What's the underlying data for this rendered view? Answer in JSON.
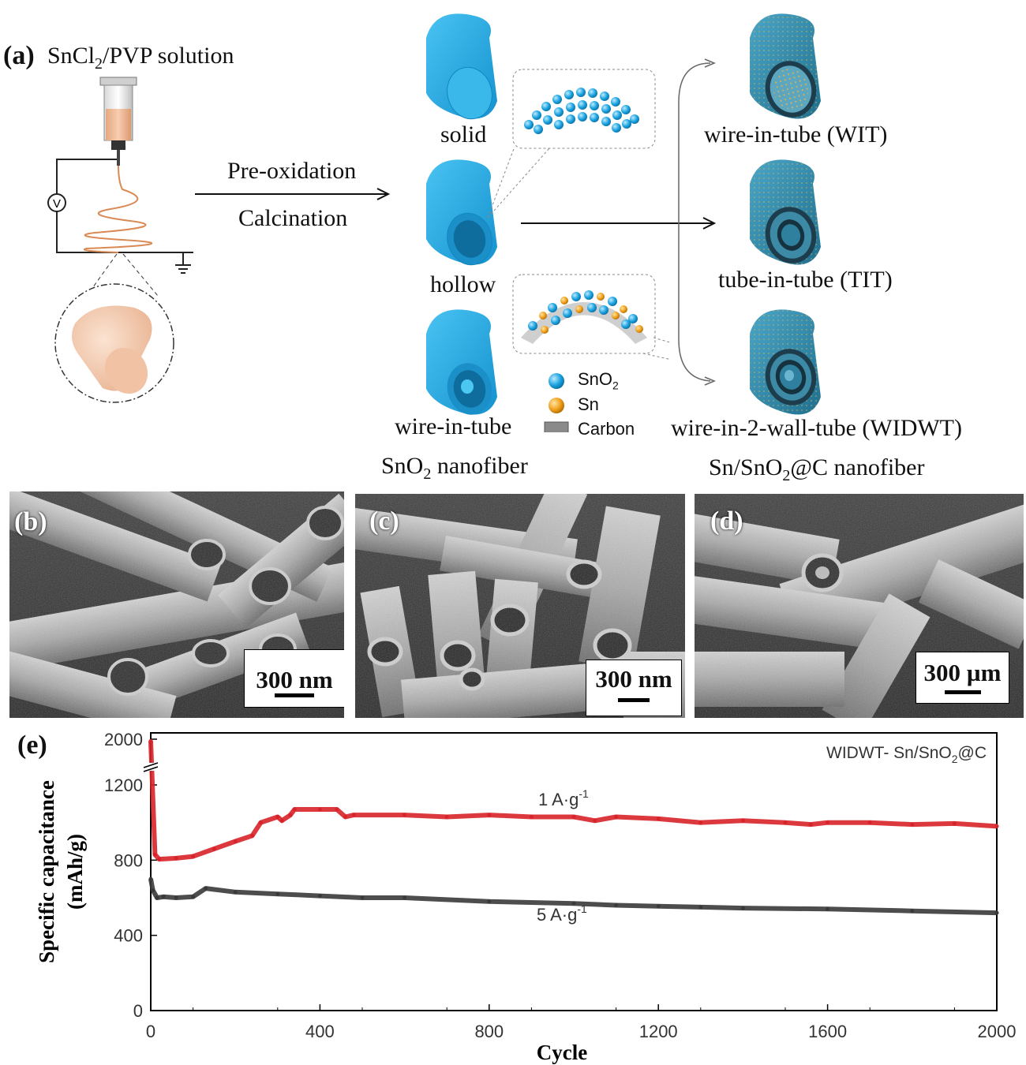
{
  "panel_a": {
    "letter": "(a)",
    "solution_label_pre": "SnCl",
    "solution_label_sub": "2",
    "solution_label_post": "/PVP solution",
    "voltmeter_symbol": "V",
    "process_step_1": "Pre-oxidation",
    "process_step_2": "Calcination",
    "sno2_structures": [
      "solid",
      "hollow",
      "wire-in-tube"
    ],
    "sno2_caption_pre": "SnO",
    "sno2_caption_sub": "2",
    "sno2_caption_post": " nanofiber",
    "legend": [
      {
        "label_pre": "SnO",
        "label_sub": "2",
        "color": "#1aa3e0"
      },
      {
        "label_pre": "Sn",
        "label_sub": "",
        "color": "#f0a01c"
      },
      {
        "label_pre": "Carbon",
        "label_sub": "",
        "color": "#7a7a7a"
      }
    ],
    "composite_structures": [
      "wire-in-tube (WIT)",
      "tube-in-tube (TIT)",
      "wire-in-2-wall-tube (WIDWT)"
    ],
    "composite_caption_pre": "Sn/SnO",
    "composite_caption_sub": "2",
    "composite_caption_post": "@C nanofiber",
    "colors": {
      "sno2_fiber": "#22aee6",
      "composite_fiber": "#2e8fb5",
      "precursor_fiber": "#f3c7a8"
    }
  },
  "sem_panels": [
    {
      "letter": "(b)",
      "scale_bar": "300 nm"
    },
    {
      "letter": "(c)",
      "scale_bar": "300 nm"
    },
    {
      "letter": "(d)",
      "scale_bar": "300 µm"
    }
  ],
  "panel_e": {
    "letter": "(e)",
    "legend_text_pre": "WIDWT- Sn/SnO",
    "legend_text_sub": "2",
    "legend_text_post": "@C",
    "chart_data": {
      "type": "line",
      "xlabel": "Cycle",
      "ylabel_line1": "Specific capacitance",
      "ylabel_line2": "(mAh/g)",
      "xlim": [
        0,
        2000
      ],
      "ylim": [
        0,
        1300
      ],
      "axis_break": {
        "below": 1300,
        "top_tick": 2000
      },
      "x_ticks": [
        0,
        400,
        800,
        1200,
        1600,
        2000
      ],
      "y_ticks": [
        0,
        400,
        800,
        1200,
        2000
      ],
      "x_tick_labels": [
        "0",
        "400",
        "800",
        "1200",
        "1600",
        "2000"
      ],
      "y_tick_labels": [
        "0",
        "400",
        "800",
        "1200",
        "2000"
      ],
      "series": [
        {
          "name": "1 A·g⁻¹",
          "label_pre": "1 A·g",
          "label_sup": "-1",
          "color": "#d8232a",
          "x": [
            0,
            10,
            20,
            60,
            100,
            150,
            200,
            240,
            260,
            300,
            310,
            330,
            340,
            400,
            440,
            460,
            480,
            600,
            700,
            800,
            900,
            1000,
            1050,
            1100,
            1200,
            1300,
            1400,
            1500,
            1560,
            1600,
            1700,
            1800,
            1900,
            2000
          ],
          "y": [
            1950,
            830,
            805,
            810,
            820,
            860,
            900,
            930,
            1000,
            1030,
            1010,
            1040,
            1070,
            1070,
            1070,
            1030,
            1040,
            1040,
            1030,
            1040,
            1030,
            1030,
            1010,
            1030,
            1020,
            1000,
            1010,
            1000,
            990,
            1000,
            1000,
            990,
            995,
            980
          ]
        },
        {
          "name": "5 A·g⁻¹",
          "label_pre": "5 A·g",
          "label_sup": "-1",
          "color": "#3a3a3a",
          "x": [
            0,
            5,
            15,
            30,
            60,
            100,
            130,
            200,
            300,
            400,
            500,
            600,
            800,
            1000,
            1100,
            1200,
            1300,
            1400,
            1600,
            1800,
            2000
          ],
          "y": [
            700,
            640,
            600,
            605,
            600,
            605,
            650,
            630,
            620,
            610,
            600,
            600,
            580,
            570,
            560,
            555,
            550,
            545,
            540,
            530,
            520
          ]
        }
      ]
    }
  }
}
